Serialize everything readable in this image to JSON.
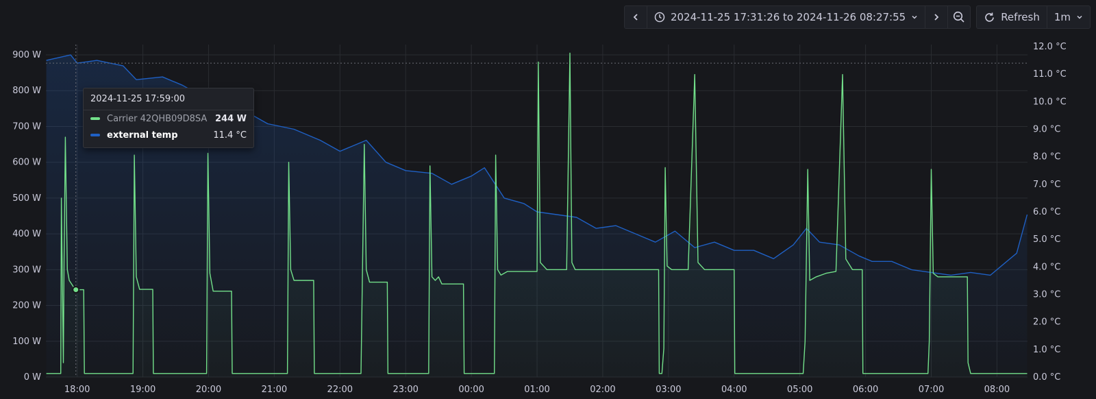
{
  "toolbar": {
    "prev_icon": "chevron-left-icon",
    "clock_icon": "clock-icon",
    "time_range": "2024-11-25 17:31:26 to 2024-11-26 08:27:55",
    "next_icon": "chevron-right-icon",
    "zoom_icon": "zoom-out-icon",
    "refresh_label": "Refresh",
    "interval": "1m"
  },
  "tooltip": {
    "time": "2024-11-25 17:59:00",
    "rows": [
      {
        "name": "Carrier 42QHB09D8SA",
        "value": "244 W",
        "color": "#73e08a"
      },
      {
        "name": "external temp",
        "value": "11.4 °C",
        "color": "#1f60c4"
      }
    ]
  },
  "chart_data": {
    "type": "line",
    "x_ticks": [
      "18:00",
      "19:00",
      "20:00",
      "21:00",
      "22:00",
      "23:00",
      "00:00",
      "01:00",
      "02:00",
      "03:00",
      "04:00",
      "05:00",
      "06:00",
      "07:00",
      "08:00"
    ],
    "y_left_ticks": [
      "0 W",
      "100 W",
      "200 W",
      "300 W",
      "400 W",
      "500 W",
      "600 W",
      "700 W",
      "800 W",
      "900 W"
    ],
    "y_right_ticks": [
      "0.0 °C",
      "1.0 °C",
      "2.0 °C",
      "3.0 °C",
      "4.0 °C",
      "5.0 °C",
      "6.0 °C",
      "7.0 °C",
      "8.0 °C",
      "9.0 °C",
      "10.0 °C",
      "11.0 °C",
      "12.0 °C"
    ],
    "y_left_range": [
      0,
      900
    ],
    "y_right_range": [
      0,
      12
    ],
    "x_range": [
      17.524,
      32.465
    ],
    "grid": true,
    "series": [
      {
        "name": "Carrier 42QHB09D8SA",
        "axis": "left",
        "unit": "W",
        "color": "#73e08a",
        "points": [
          [
            17.53,
            10
          ],
          [
            17.75,
            10
          ],
          [
            17.76,
            500
          ],
          [
            17.79,
            40
          ],
          [
            17.8,
            320
          ],
          [
            17.82,
            670
          ],
          [
            17.85,
            300
          ],
          [
            17.88,
            270
          ],
          [
            17.95,
            250
          ],
          [
            17.98,
            244
          ],
          [
            18.1,
            244
          ],
          [
            18.11,
            10
          ],
          [
            18.85,
            10
          ],
          [
            18.87,
            620
          ],
          [
            18.9,
            280
          ],
          [
            18.95,
            245
          ],
          [
            19.15,
            245
          ],
          [
            19.16,
            10
          ],
          [
            19.97,
            10
          ],
          [
            19.99,
            625
          ],
          [
            20.02,
            290
          ],
          [
            20.07,
            240
          ],
          [
            20.35,
            240
          ],
          [
            20.36,
            10
          ],
          [
            21.2,
            10
          ],
          [
            21.22,
            600
          ],
          [
            21.25,
            300
          ],
          [
            21.3,
            270
          ],
          [
            21.6,
            270
          ],
          [
            21.61,
            10
          ],
          [
            22.32,
            10
          ],
          [
            22.37,
            650
          ],
          [
            22.4,
            300
          ],
          [
            22.45,
            265
          ],
          [
            22.72,
            265
          ],
          [
            22.73,
            10
          ],
          [
            23.35,
            10
          ],
          [
            23.37,
            590
          ],
          [
            23.4,
            280
          ],
          [
            23.45,
            270
          ],
          [
            23.5,
            280
          ],
          [
            23.55,
            260
          ],
          [
            23.88,
            260
          ],
          [
            23.89,
            10
          ],
          [
            24.35,
            10
          ],
          [
            24.37,
            620
          ],
          [
            24.4,
            300
          ],
          [
            24.45,
            285
          ],
          [
            24.55,
            295
          ],
          [
            25.0,
            295
          ],
          [
            25.02,
            880
          ],
          [
            25.05,
            320
          ],
          [
            25.15,
            300
          ],
          [
            25.45,
            300
          ],
          [
            25.5,
            905
          ],
          [
            25.53,
            320
          ],
          [
            25.58,
            300
          ],
          [
            26.85,
            300
          ],
          [
            26.86,
            10
          ],
          [
            26.9,
            10
          ],
          [
            26.93,
            80
          ],
          [
            26.95,
            585
          ],
          [
            26.98,
            310
          ],
          [
            27.05,
            300
          ],
          [
            27.3,
            300
          ],
          [
            27.4,
            845
          ],
          [
            27.45,
            320
          ],
          [
            27.55,
            300
          ],
          [
            28.0,
            300
          ],
          [
            28.01,
            10
          ],
          [
            29.05,
            10
          ],
          [
            29.08,
            100
          ],
          [
            29.12,
            580
          ],
          [
            29.15,
            270
          ],
          [
            29.25,
            280
          ],
          [
            29.4,
            290
          ],
          [
            29.55,
            295
          ],
          [
            29.65,
            845
          ],
          [
            29.7,
            330
          ],
          [
            29.8,
            300
          ],
          [
            29.95,
            300
          ],
          [
            29.96,
            10
          ],
          [
            30.95,
            10
          ],
          [
            30.97,
            100
          ],
          [
            31.0,
            580
          ],
          [
            31.03,
            290
          ],
          [
            31.1,
            280
          ],
          [
            31.5,
            280
          ],
          [
            31.55,
            280
          ],
          [
            31.56,
            40
          ],
          [
            31.6,
            10
          ],
          [
            32.46,
            10
          ]
        ]
      },
      {
        "name": "external temp",
        "axis": "right",
        "unit": "°C",
        "color": "#1f60c4",
        "points": [
          [
            17.53,
            11.5
          ],
          [
            17.9,
            11.7
          ],
          [
            18.0,
            11.4
          ],
          [
            18.3,
            11.5
          ],
          [
            18.7,
            11.3
          ],
          [
            18.9,
            10.8
          ],
          [
            19.3,
            10.9
          ],
          [
            19.6,
            10.6
          ],
          [
            19.9,
            10.2
          ],
          [
            20.3,
            10.0
          ],
          [
            20.6,
            9.6
          ],
          [
            20.9,
            9.2
          ],
          [
            21.3,
            9.0
          ],
          [
            21.7,
            8.6
          ],
          [
            22.0,
            8.2
          ],
          [
            22.4,
            8.6
          ],
          [
            22.7,
            7.8
          ],
          [
            23.0,
            7.5
          ],
          [
            23.4,
            7.4
          ],
          [
            23.7,
            7.0
          ],
          [
            24.0,
            7.3
          ],
          [
            24.2,
            7.6
          ],
          [
            24.5,
            6.5
          ],
          [
            24.8,
            6.3
          ],
          [
            25.0,
            6.0
          ],
          [
            25.3,
            5.9
          ],
          [
            25.6,
            5.8
          ],
          [
            25.9,
            5.4
          ],
          [
            26.2,
            5.5
          ],
          [
            26.5,
            5.2
          ],
          [
            26.8,
            4.9
          ],
          [
            27.1,
            5.3
          ],
          [
            27.4,
            4.7
          ],
          [
            27.7,
            4.9
          ],
          [
            28.0,
            4.6
          ],
          [
            28.3,
            4.6
          ],
          [
            28.6,
            4.3
          ],
          [
            28.9,
            4.8
          ],
          [
            29.1,
            5.4
          ],
          [
            29.3,
            4.9
          ],
          [
            29.6,
            4.8
          ],
          [
            29.9,
            4.4
          ],
          [
            30.1,
            4.2
          ],
          [
            30.4,
            4.2
          ],
          [
            30.7,
            3.9
          ],
          [
            31.0,
            3.8
          ],
          [
            31.3,
            3.7
          ],
          [
            31.6,
            3.8
          ],
          [
            31.9,
            3.7
          ],
          [
            32.1,
            4.1
          ],
          [
            32.3,
            4.5
          ],
          [
            32.46,
            5.9
          ]
        ]
      }
    ]
  }
}
